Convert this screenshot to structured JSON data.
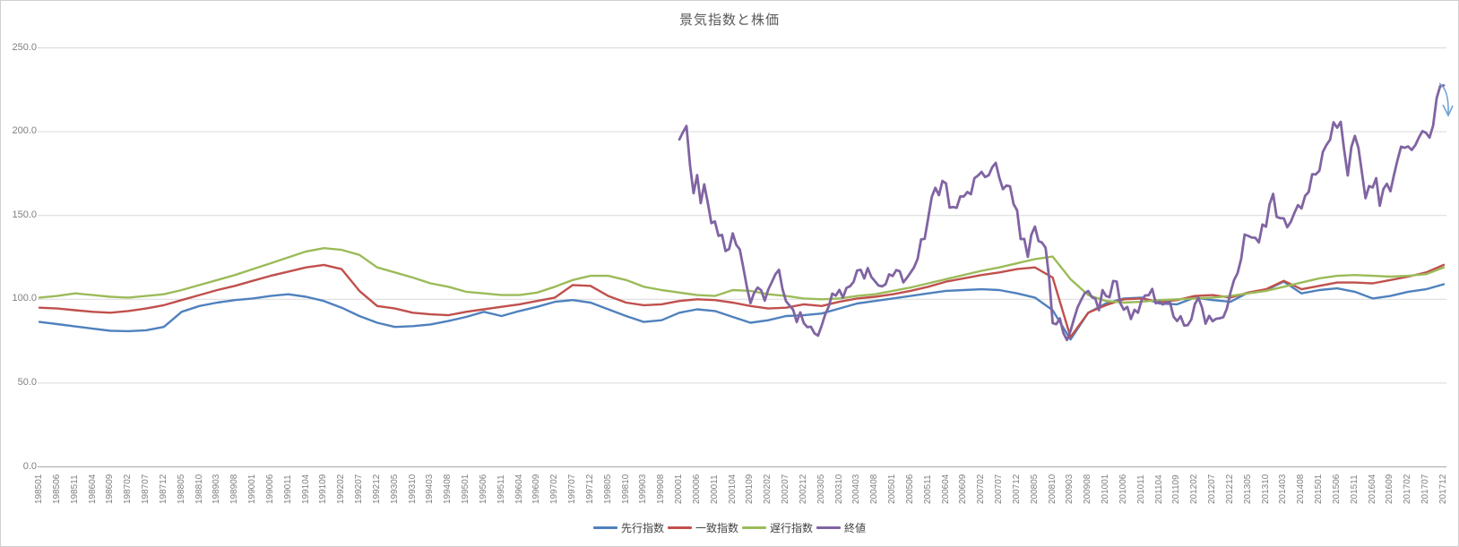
{
  "chart_data": {
    "type": "line",
    "title": "景気指数と株価",
    "grid": true,
    "legend_position": "bottom",
    "y_axis": {
      "min": 0,
      "max": 250,
      "step": 50,
      "tick_values": [
        0,
        50,
        100,
        150,
        200,
        250
      ],
      "tick_labels": [
        "0.0",
        "50.0",
        "100.0",
        "150.0",
        "200.0",
        "250.0"
      ]
    },
    "x_axis": {
      "unit": "year-month (YYYYMM)",
      "interval_months_between_ticks": 5,
      "tick_labels": [
        "198501",
        "198506",
        "198511",
        "198604",
        "198609",
        "198702",
        "198707",
        "198712",
        "198805",
        "198810",
        "198903",
        "198908",
        "199001",
        "199006",
        "199011",
        "199104",
        "199109",
        "199202",
        "199207",
        "199212",
        "199305",
        "199310",
        "199403",
        "199408",
        "199501",
        "199506",
        "199511",
        "199604",
        "199609",
        "199702",
        "199707",
        "199712",
        "199805",
        "199810",
        "199903",
        "199908",
        "200001",
        "200006",
        "200011",
        "200104",
        "200109",
        "200202",
        "200207",
        "200212",
        "200305",
        "200310",
        "200403",
        "200408",
        "200501",
        "200506",
        "200511",
        "200604",
        "200609",
        "200702",
        "200707",
        "200712",
        "200805",
        "200810",
        "200903",
        "200908",
        "201001",
        "201006",
        "201011",
        "201104",
        "201109",
        "201202",
        "201207",
        "201212",
        "201305",
        "201310",
        "201403",
        "201408",
        "201501",
        "201506",
        "201511",
        "201604",
        "201609",
        "201702",
        "201707",
        "201712"
      ]
    },
    "series": [
      {
        "name": "先行指数",
        "color": "#4F81BD",
        "start_label": "198501",
        "start_month_index": 0,
        "interval_months": 5,
        "values": [
          86.5,
          85.2,
          83.8,
          82.5,
          81.2,
          81.0,
          81.5,
          83.5,
          92.5,
          96.0,
          98.0,
          99.5,
          100.5,
          102.0,
          103.0,
          101.5,
          99.0,
          95.0,
          90.0,
          86.0,
          83.5,
          84.0,
          85.0,
          87.0,
          89.5,
          92.5,
          90.0,
          93.0,
          95.5,
          98.5,
          99.5,
          98.0,
          94.0,
          90.0,
          86.5,
          87.5,
          92.0,
          94.0,
          93.0,
          89.5,
          86.0,
          87.5,
          90.0,
          90.5,
          91.5,
          94.5,
          97.5,
          99.0,
          100.5,
          102.0,
          103.5,
          105.0,
          105.5,
          106.0,
          105.5,
          103.5,
          101.0,
          93.5,
          76.0,
          92.0,
          97.5,
          100.5,
          101.0,
          97.5,
          97.0,
          101.0,
          99.5,
          98.5,
          104.0,
          105.5,
          110.5,
          103.5,
          105.5,
          106.5,
          104.5,
          100.5,
          102.0,
          104.5,
          106.0,
          109.0
        ]
      },
      {
        "name": "一致指数",
        "color": "#C0504D",
        "start_label": "198501",
        "start_month_index": 0,
        "interval_months": 5,
        "values": [
          95.0,
          94.5,
          93.5,
          92.5,
          92.0,
          93.0,
          94.5,
          96.5,
          99.5,
          102.5,
          105.5,
          108.0,
          111.0,
          114.0,
          116.5,
          119.0,
          120.5,
          118.0,
          105.0,
          96.0,
          94.5,
          92.0,
          91.0,
          90.5,
          92.5,
          94.0,
          95.5,
          97.0,
          99.0,
          101.0,
          108.5,
          108.0,
          102.0,
          98.0,
          96.5,
          97.0,
          99.0,
          100.0,
          99.5,
          98.0,
          96.0,
          94.5,
          95.0,
          97.0,
          96.0,
          98.5,
          100.5,
          101.5,
          103.0,
          105.0,
          107.5,
          110.5,
          112.5,
          114.5,
          116.0,
          118.0,
          119.0,
          113.0,
          77.5,
          92.0,
          96.5,
          100.0,
          100.5,
          98.5,
          99.5,
          102.0,
          102.5,
          101.0,
          104.0,
          106.0,
          111.0,
          106.0,
          108.0,
          110.0,
          110.0,
          109.5,
          111.5,
          113.5,
          116.0,
          120.5
        ]
      },
      {
        "name": "遅行指数",
        "color": "#9BBB59",
        "start_label": "198501",
        "start_month_index": 0,
        "interval_months": 5,
        "values": [
          101.0,
          102.0,
          103.5,
          102.5,
          101.5,
          101.0,
          102.0,
          103.0,
          105.5,
          108.5,
          111.5,
          114.5,
          118.0,
          121.5,
          125.0,
          128.5,
          130.5,
          129.5,
          126.5,
          119.0,
          116.0,
          113.0,
          109.5,
          107.5,
          104.5,
          103.5,
          102.5,
          102.5,
          104.0,
          107.5,
          111.5,
          114.0,
          114.0,
          111.5,
          107.5,
          105.5,
          104.0,
          102.5,
          102.0,
          105.5,
          105.0,
          103.0,
          102.0,
          100.5,
          100.0,
          100.5,
          102.0,
          103.0,
          105.0,
          107.0,
          109.5,
          112.0,
          114.5,
          117.0,
          119.0,
          121.5,
          124.0,
          125.5,
          112.0,
          102.5,
          99.0,
          98.0,
          98.5,
          99.5,
          100.0,
          100.5,
          101.0,
          102.0,
          103.5,
          105.0,
          107.5,
          110.0,
          112.5,
          114.0,
          114.5,
          114.0,
          113.5,
          114.0,
          115.0,
          119.0
        ]
      },
      {
        "name": "終値",
        "color": "#8064A2",
        "start_label": "200001",
        "start_month_index": 180,
        "interval_months": 1,
        "values": [
          195.4,
          199.6,
          203.4,
          179.7,
          163.3,
          174.1,
          157.3,
          168.6,
          157.5,
          145.4,
          146.5,
          137.9,
          138.4,
          128.8,
          130.0,
          139.3,
          132.6,
          129.7,
          118.6,
          107.1,
          97.7,
          103.7,
          107.0,
          105.4,
          99.2,
          105.9,
          110.2,
          114.9,
          117.6,
          106.2,
          98.8,
          96.2,
          93.8,
          86.4,
          92.2,
          85.8,
          83.4,
          83.6,
          79.7,
          78.3,
          84.2,
          90.8,
          95.6,
          103.4,
          102.2,
          105.6,
          101.0,
          106.8,
          107.8,
          110.4,
          117.2,
          117.6,
          112.4,
          118.6,
          113.3,
          110.8,
          108.2,
          107.7,
          109.0,
          114.9,
          113.9,
          117.4,
          116.7,
          110.1,
          112.8,
          115.8,
          119.0,
          124.1,
          135.7,
          136.1,
          148.7,
          161.1,
          166.5,
          162.1,
          170.6,
          169.1,
          154.7,
          155.1,
          154.6,
          161.4,
          161.3,
          164.0,
          162.7,
          172.3,
          173.8,
          176.0,
          172.9,
          174.0,
          178.8,
          181.4,
          172.5,
          165.7,
          167.9,
          167.4,
          156.8,
          153.1,
          135.9,
          136.0,
          125.3,
          138.5,
          143.4,
          134.8,
          133.8,
          130.7,
          112.6,
          85.8,
          85.1,
          88.6,
          79.9,
          75.7,
          81.1,
          88.3,
          95.2,
          99.6,
          103.6,
          104.9,
          101.3,
          100.3,
          93.5,
          105.5,
          102.0,
          101.3,
          110.9,
          110.6,
          97.7,
          93.8,
          95.4,
          88.2,
          93.7,
          92.0,
          99.4,
          102.3,
          102.4,
          106.2,
          97.6,
          98.5,
          96.9,
          98.2,
          98.3,
          89.6,
          87.0,
          89.9,
          84.3,
          84.6,
          88.0,
          97.2,
          100.8,
          95.2,
          85.4,
          90.1,
          86.9,
          88.4,
          88.7,
          89.3,
          94.5,
          104.0,
          111.4,
          115.6,
          124.0,
          138.6,
          137.8,
          136.8,
          136.7,
          133.9,
          144.6,
          143.3,
          156.6,
          162.9,
          149.2,
          148.4,
          148.3,
          143.0,
          146.3,
          151.6,
          156.2,
          154.2,
          161.7,
          164.1,
          174.6,
          174.5,
          176.7,
          188.0,
          192.1,
          195.2,
          205.6,
          202.4,
          205.9,
          188.9,
          173.9,
          190.8,
          197.5,
          190.3,
          175.2,
          160.3,
          167.6,
          166.7,
          172.3,
          155.8,
          165.7,
          168.9,
          164.5,
          174.3,
          183.1,
          191.1,
          190.4,
          191.2,
          189.1,
          192.0,
          196.5,
          200.3,
          199.3,
          196.5,
          203.6,
          220.1,
          227.2,
          227.6
        ]
      }
    ],
    "annotation": {
      "type": "down-arrow",
      "description": "light blue arrow pointing down at the end of the 終値 line",
      "color": "#6FA3D4"
    },
    "style": {
      "gridline_color": "#D9D9D9",
      "axis_line_color": "#A6A6A6",
      "tick_text_color": "#7F7F7F",
      "title_color": "#595959",
      "legend_text_color": "#444444"
    }
  }
}
